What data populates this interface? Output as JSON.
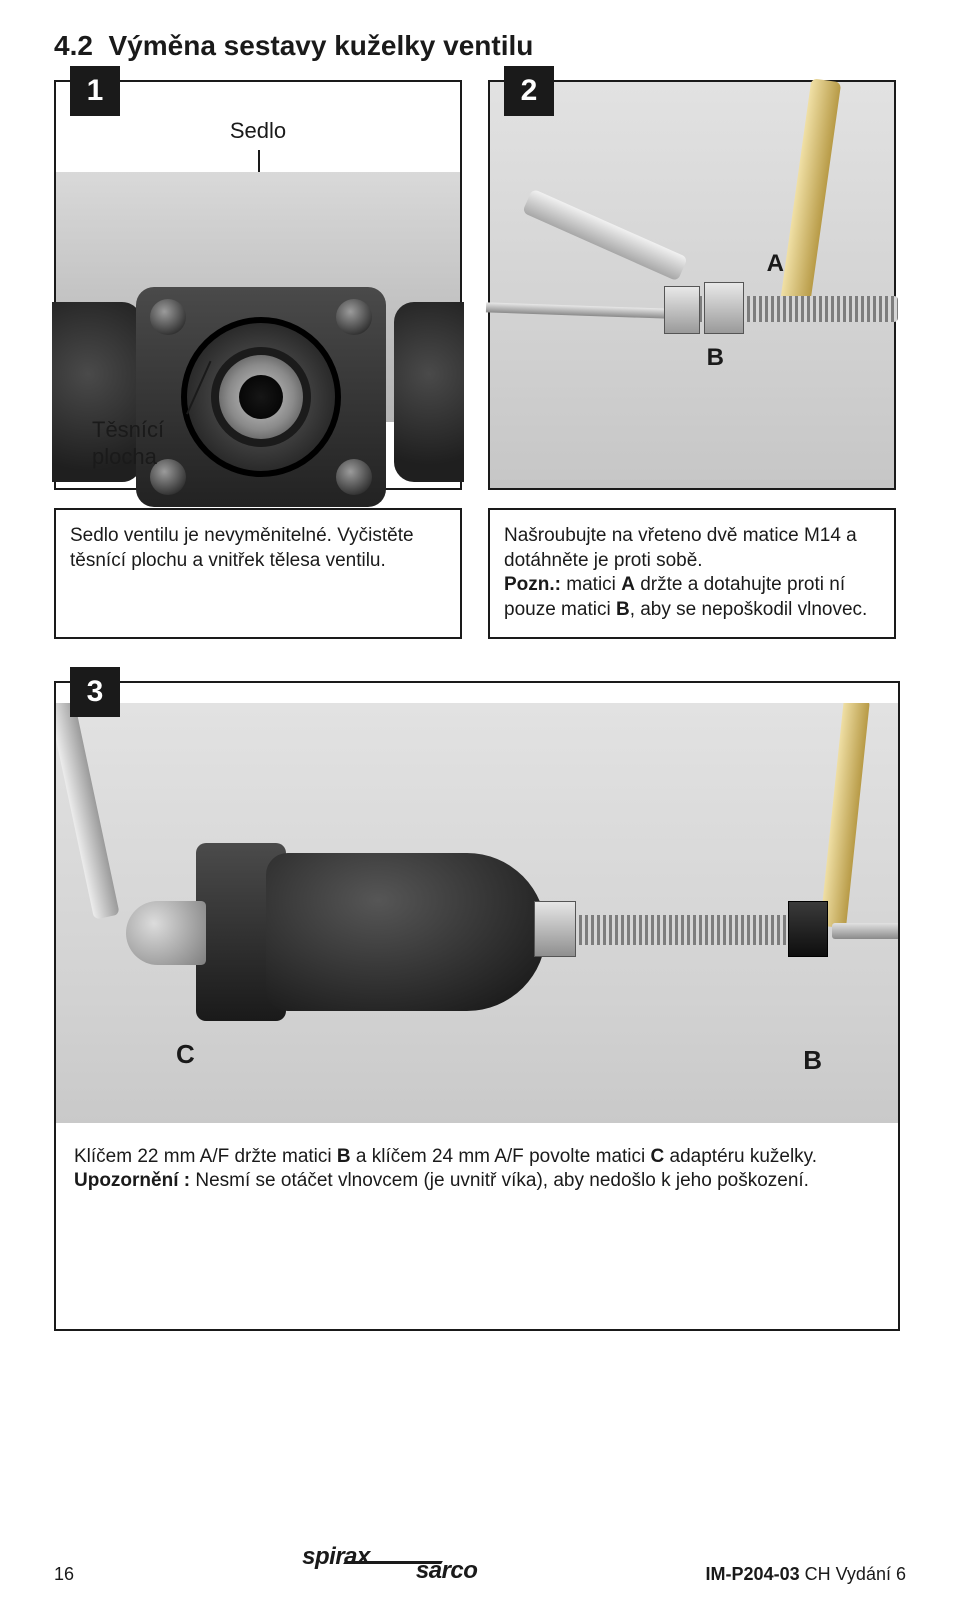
{
  "section_number": "4.2",
  "section_title": "Výměna sestavy kuželky ventilu",
  "steps": {
    "s1": {
      "badge": "1",
      "label_top": "Sedlo",
      "label_bottom_l1": "Těsnící",
      "label_bottom_l2": "plocha"
    },
    "s2": {
      "badge": "2",
      "letterA": "A",
      "letterB": "B"
    },
    "s3": {
      "badge": "3",
      "letterC": "C",
      "letterB": "B"
    }
  },
  "captions": {
    "c1": "Sedlo ventilu je nevyměnitelné. Vyčistěte těsnící plochu a vnitřek tělesa ventilu.",
    "c2_l1": "Našroubujte na vřeteno dvě matice M14 a dotáhněte je proti sobě.",
    "c2_note_label": "Pozn.:",
    "c2_l2a": " matici ",
    "c2_l2b": " držte a dotahujte proti ní pouze matici ",
    "c2_l2c": ", aby se nepoškodil vlnovec.",
    "c3_l1a": "Klíčem 22 mm A/F držte matici ",
    "c3_l1b": " a klíčem 24 mm A/F povolte matici ",
    "c3_l1c": " adaptéru kuželky.",
    "c3_warn_label": "Upozornění :",
    "c3_l2": " Nesmí se otáčet vlnovcem (je uvnitř víka), aby nedošlo k jeho poškození.",
    "c3_letterB": "B",
    "c3_letterC": "C",
    "c2_letterA": "A",
    "c2_letterB": "B"
  },
  "footer": {
    "page": "16",
    "doc_code": "IM-P204-03",
    "doc_suffix": " CH Vydání 6",
    "logo_top": "spirax",
    "logo_bottom": "sarco"
  },
  "colors": {
    "text": "#1a1a1a",
    "border": "#1a1a1a",
    "badge_bg": "#1a1a1a",
    "badge_fg": "#ffffff"
  }
}
